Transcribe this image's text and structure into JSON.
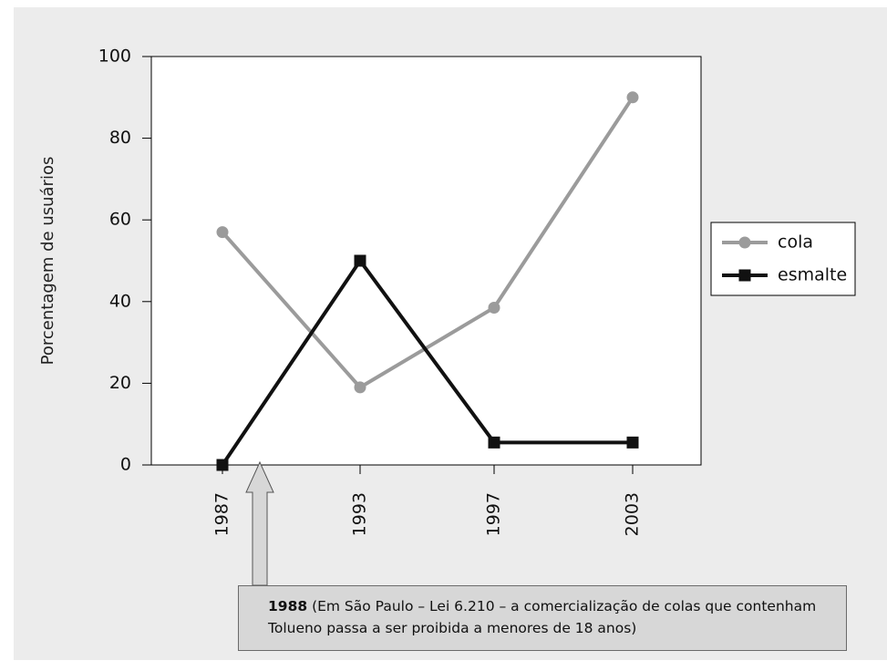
{
  "chart_data": {
    "type": "line",
    "categories": [
      "1987",
      "1993",
      "1997",
      "2003"
    ],
    "series": [
      {
        "name": "cola",
        "values": [
          57,
          19,
          38.5,
          90
        ],
        "color": "#9b9b9b",
        "marker": "circle"
      },
      {
        "name": "esmalte",
        "values": [
          0,
          50,
          5.5,
          5.5
        ],
        "color": "#111111",
        "marker": "square"
      }
    ],
    "ylabel": "Porcentagem de usuários",
    "ylim": [
      0,
      100
    ],
    "yticks": [
      0,
      20,
      40,
      60,
      80,
      100
    ],
    "grid": false,
    "legend_position": "right",
    "annotation": {
      "target": "1988",
      "bold": "1988",
      "text": " (Em São Paulo – Lei 6.210 – a comercialização de colas que contenham Tolueno passa a ser proibida a menores de 18 anos)"
    }
  }
}
